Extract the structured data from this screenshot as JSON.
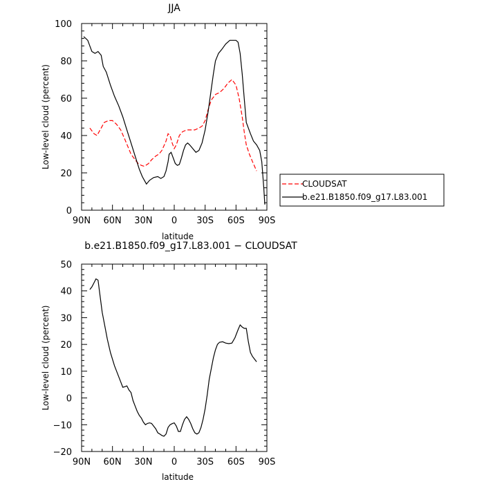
{
  "chart_data": [
    {
      "type": "line",
      "title": "JJA",
      "xlabel": "latitude",
      "ylabel": "Low-level cloud (percent)",
      "xlim": [
        90,
        -90
      ],
      "ylim": [
        0,
        100
      ],
      "xticks": [
        90,
        60,
        30,
        0,
        -30,
        -60,
        -90
      ],
      "xtick_labels": [
        "90N",
        "60N",
        "30N",
        "0",
        "30S",
        "60S",
        "90S"
      ],
      "yticks": [
        0,
        20,
        40,
        60,
        80,
        100
      ],
      "ytick_labels": [
        "0",
        "20",
        "40",
        "60",
        "80",
        "100"
      ],
      "legend": {
        "placement": "right",
        "entries": [
          "CLOUDSAT",
          "b.e21.B1850.f09_g17.L83.001"
        ]
      },
      "series": [
        {
          "name": "CLOUDSAT",
          "color": "#ff0000",
          "style": "dashed",
          "x": [
            82,
            78,
            75,
            72,
            68,
            64,
            60,
            56,
            52,
            48,
            45,
            42,
            38,
            35,
            32,
            29,
            25,
            22,
            18,
            15,
            12,
            8,
            6,
            4,
            2,
            0,
            -2,
            -5,
            -8,
            -12,
            -16,
            -20,
            -24,
            -27,
            -30,
            -33,
            -36,
            -40,
            -44,
            -48,
            -52,
            -56,
            -60,
            -63,
            -66,
            -68,
            -70,
            -73,
            -76,
            -80
          ],
          "y": [
            44,
            41,
            40,
            43,
            47,
            48,
            48,
            46,
            43,
            38,
            34,
            30,
            27,
            25,
            24,
            23.5,
            25,
            27,
            29,
            30,
            32,
            37,
            41,
            40,
            36,
            33,
            35,
            40,
            42,
            43,
            43,
            43,
            44,
            45,
            48,
            54,
            59,
            62,
            63,
            65,
            68,
            70,
            67,
            60,
            50,
            42,
            35,
            30,
            26,
            21
          ]
        },
        {
          "name": "b.e21.B1850.f09_g17.L83.001",
          "color": "#000000",
          "style": "solid",
          "x": [
            88,
            86,
            84,
            82,
            80,
            77,
            74,
            71,
            69,
            66,
            62,
            58,
            54,
            50,
            46,
            42,
            38,
            34,
            31,
            29,
            27,
            24,
            20,
            16,
            13,
            10,
            8,
            6,
            5,
            3,
            1,
            -1,
            -3,
            -5,
            -7,
            -9,
            -11,
            -13,
            -15,
            -18,
            -21,
            -24,
            -27,
            -30,
            -33,
            -36,
            -38,
            -40,
            -43,
            -46,
            -50,
            -54,
            -57,
            -60,
            -62,
            -64,
            -66,
            -68,
            -70,
            -72,
            -74,
            -77,
            -80,
            -83,
            -85,
            -87,
            -88
          ],
          "y": [
            93,
            92,
            91,
            88,
            85,
            84,
            85,
            83,
            77,
            74,
            67,
            61,
            56,
            50,
            43,
            36,
            29,
            22,
            18,
            16,
            14,
            16,
            17.5,
            18,
            17,
            18,
            21,
            26,
            30,
            31,
            28,
            25,
            24,
            24.5,
            28,
            32,
            35,
            36,
            35,
            33,
            31,
            32,
            36,
            43,
            53,
            65,
            73,
            80,
            84,
            86,
            89,
            91,
            91,
            91,
            90,
            84,
            73,
            60,
            47,
            44,
            41,
            37,
            35,
            32,
            26,
            12,
            3
          ]
        }
      ]
    },
    {
      "type": "line",
      "title": "b.e21.B1850.f09_g17.L83.001 − CLOUDSAT",
      "xlabel": "latitude",
      "ylabel": "Low-level cloud (percent)",
      "xlim": [
        90,
        -90
      ],
      "ylim": [
        -20,
        50
      ],
      "xticks": [
        90,
        60,
        30,
        0,
        -30,
        -60,
        -90
      ],
      "xtick_labels": [
        "90N",
        "60N",
        "30N",
        "0",
        "30S",
        "60S",
        "90S"
      ],
      "yticks": [
        -20,
        -10,
        0,
        10,
        20,
        30,
        40,
        50
      ],
      "ytick_labels": [
        "−20",
        "−10",
        "0",
        "10",
        "20",
        "30",
        "40",
        "50"
      ],
      "series": [
        {
          "color": "#000000",
          "style": "solid",
          "x": [
            82,
            80,
            78,
            76,
            74,
            72,
            70,
            68,
            65,
            62,
            58,
            55,
            52,
            50,
            48,
            46,
            44,
            42,
            40,
            38,
            36,
            34,
            32,
            30,
            28,
            26,
            24,
            22,
            20,
            18,
            16,
            14,
            12,
            10,
            8,
            6,
            4,
            2,
            0,
            -2,
            -4,
            -6,
            -8,
            -10,
            -12,
            -14,
            -16,
            -18,
            -20,
            -22,
            -24,
            -26,
            -28,
            -30,
            -32,
            -34,
            -36,
            -38,
            -40,
            -42,
            -44,
            -47,
            -50,
            -53,
            -56,
            -59,
            -62,
            -64,
            -66,
            -68,
            -70,
            -72,
            -74,
            -76,
            -78,
            -80
          ],
          "y": [
            40.5,
            41.5,
            43,
            44.5,
            44,
            38,
            32,
            28,
            22,
            17,
            12,
            9,
            6,
            4,
            4.2,
            4.5,
            3,
            2,
            -1,
            -3,
            -5,
            -6.5,
            -7.5,
            -9,
            -10,
            -9.5,
            -9.3,
            -9.5,
            -10.5,
            -11.5,
            -13,
            -13.5,
            -14,
            -14.3,
            -13.5,
            -11,
            -10,
            -9.6,
            -9.3,
            -10.5,
            -12.5,
            -12.5,
            -10,
            -8,
            -7,
            -8,
            -9.5,
            -11.5,
            -13,
            -13.5,
            -13,
            -11,
            -8,
            -4,
            1,
            7,
            11,
            15,
            18,
            20,
            20.8,
            21,
            20.5,
            20.3,
            20.5,
            22.5,
            25.5,
            27.3,
            26.5,
            26,
            26,
            21,
            17,
            15.5,
            14.5,
            13.5
          ]
        }
      ]
    }
  ]
}
